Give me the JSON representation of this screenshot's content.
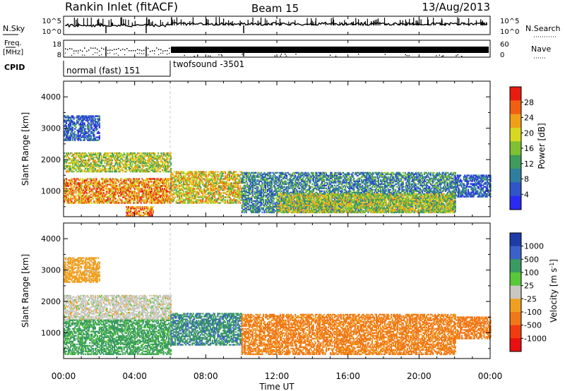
{
  "header": {
    "station": "Rankin Inlet (fitACF)",
    "beam": "Beam 15",
    "date": "13/Aug/2013"
  },
  "noise_panel": {
    "left_label": "N.Sky",
    "right_label": "N.Search",
    "right_label_style": "dotted",
    "left_ticks": [
      "10^5",
      "10^0"
    ],
    "right_ticks": [
      "10^5",
      "10^0"
    ]
  },
  "freq_panel": {
    "left_label_1": "Freq.",
    "left_label_2": "[MHz]",
    "right_label": "Nave",
    "right_label_style": "dotted",
    "left_ticks": [
      "18",
      "8"
    ],
    "right_ticks": [
      "60",
      "0"
    ]
  },
  "cpid_panel": {
    "label": "CPID",
    "modes": [
      {
        "name": "normal (fast) 151",
        "start_hour": 0,
        "end_hour": 6
      },
      {
        "name": "twofsound -3501",
        "start_hour": 6,
        "end_hour": 24
      }
    ]
  },
  "chart_data": [
    {
      "type": "heatmap",
      "parameter": "power",
      "ylabel": "Slant Range [km]",
      "ylim": [
        180,
        4500
      ],
      "yticks": [
        "1000",
        "2000",
        "3000",
        "4000"
      ],
      "xlim": [
        0,
        24
      ],
      "colorbar": {
        "label": "Power [dB]",
        "range": [
          0,
          32
        ],
        "tick_labels": [
          "4",
          "8",
          "12",
          "16",
          "20",
          "24",
          "28"
        ],
        "colors": [
          "#2a2af0",
          "#2f55c8",
          "#2f7e9e",
          "#3f9b5e",
          "#80c032",
          "#d8d820",
          "#f0a018",
          "#f06012",
          "#e81c10"
        ]
      },
      "regions": [
        {
          "t0": 0,
          "t1": 6,
          "r0": 600,
          "r1": 1400,
          "value": 24
        },
        {
          "t0": 0,
          "t1": 6,
          "r0": 1600,
          "r1": 2200,
          "value": 18
        },
        {
          "t0": 3.5,
          "t1": 5,
          "r0": 200,
          "r1": 500,
          "value": 26
        },
        {
          "t0": 0,
          "t1": 2,
          "r0": 2600,
          "r1": 3400,
          "value": 6
        },
        {
          "t0": 6,
          "t1": 10,
          "r0": 600,
          "r1": 1600,
          "value": 20
        },
        {
          "t0": 10,
          "t1": 22,
          "r0": 300,
          "r1": 1600,
          "value": 10
        },
        {
          "t0": 12,
          "t1": 22,
          "r0": 300,
          "r1": 900,
          "value": 18
        },
        {
          "t0": 22,
          "t1": 24,
          "r0": 800,
          "r1": 1500,
          "value": 6
        }
      ]
    },
    {
      "type": "heatmap",
      "parameter": "velocity",
      "ylabel": "Slant Range [km]",
      "ylim": [
        180,
        4500
      ],
      "yticks": [
        "1000",
        "2000",
        "3000",
        "4000"
      ],
      "xlim": [
        0,
        24
      ],
      "colorbar": {
        "label": "Velocity [m s^-1]",
        "tick_labels": [
          "1000",
          "500",
          "100",
          "25",
          "-25",
          "-100",
          "-500",
          "-1000"
        ],
        "colors": [
          "#1e3ca8",
          "#3a62c8",
          "#3a9a62",
          "#58c83a",
          "#c8c8c0",
          "#f0a020",
          "#f07818",
          "#f03c10",
          "#e81010"
        ]
      },
      "regions": [
        {
          "t0": 0,
          "t1": 6,
          "r0": 1400,
          "r1": 2200,
          "value": 0
        },
        {
          "t0": 0,
          "t1": 6,
          "r0": 300,
          "r1": 1400,
          "value": 150
        },
        {
          "t0": 0,
          "t1": 2,
          "r0": 2600,
          "r1": 3400,
          "value": -50
        },
        {
          "t0": 6,
          "t1": 10,
          "r0": 600,
          "r1": 1600,
          "value": 400
        },
        {
          "t0": 10,
          "t1": 22,
          "r0": 300,
          "r1": 1600,
          "value": -150
        },
        {
          "t0": 22,
          "t1": 24,
          "r0": 800,
          "r1": 1500,
          "value": -200
        }
      ]
    }
  ],
  "time_axis": {
    "xlabel": "Time UT",
    "tick_labels": [
      "00:00",
      "04:00",
      "08:00",
      "12:00",
      "16:00",
      "20:00",
      "00:00"
    ],
    "tick_hours": [
      0,
      4,
      8,
      12,
      16,
      20,
      24
    ]
  }
}
